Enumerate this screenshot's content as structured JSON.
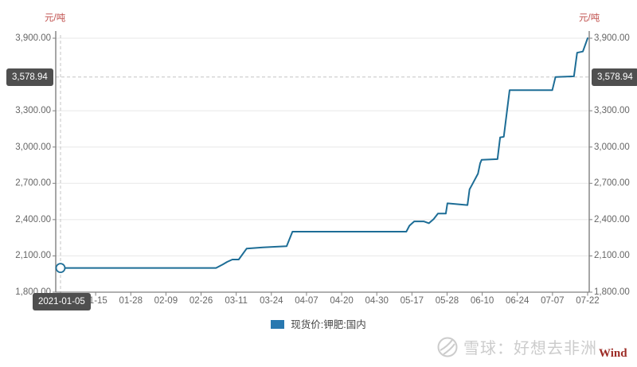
{
  "panel": {
    "y_unit_left": "元/吨",
    "y_unit_right": "元/吨"
  },
  "highlight": {
    "y_label": "3,578.94",
    "x_label": "2021-01-05",
    "y_value": 3578.94
  },
  "legend": {
    "label": "现货价:钾肥:国内",
    "swatch_color": "#2878b0"
  },
  "watermark": {
    "text": "雪球：好想去非洲",
    "wind": "Wind"
  },
  "colors": {
    "line": "#1d6d96",
    "axis": "#808080",
    "grid": "#e7e7e7",
    "dashed": "#c4c4c4",
    "tick_text": "#666666",
    "badge_bg": "#4f4f4f",
    "unit": "#c0504d",
    "wind": "#9c2c26",
    "watermark": "#cccccc"
  },
  "chart_data": {
    "type": "line",
    "title": "",
    "ylabel": "元/吨",
    "ylim": [
      1800,
      3900
    ],
    "grid": "horizontal",
    "legend_position": "bottom",
    "y_ticks": [
      1800,
      2100,
      2400,
      2700,
      3000,
      3300,
      3900
    ],
    "y_tick_labels": [
      "1,800.00",
      "2,100.00",
      "2,400.00",
      "2,700.00",
      "3,000.00",
      "3,300.00",
      "3,900.00"
    ],
    "x_tick_labels": [
      "2021-01-05",
      "01-15",
      "01-28",
      "02-09",
      "02-26",
      "03-11",
      "03-24",
      "04-07",
      "04-20",
      "04-30",
      "05-17",
      "05-28",
      "06-10",
      "06-24",
      "07-07",
      "07-22"
    ],
    "x_range": [
      "2021-01-05",
      "2021-07-22"
    ],
    "reference_line": {
      "value": 3578.94,
      "label": "3,578.94"
    },
    "start_marker": {
      "pos": 0,
      "value": 2000
    },
    "series": [
      {
        "name": "现货价:钾肥:国内",
        "color": "#1d6d96",
        "points": [
          [
            0,
            2000
          ],
          [
            0.295,
            2000
          ],
          [
            0.308,
            2030
          ],
          [
            0.316,
            2050
          ],
          [
            0.326,
            2070
          ],
          [
            0.338,
            2070
          ],
          [
            0.353,
            2160
          ],
          [
            0.384,
            2170
          ],
          [
            0.406,
            2175
          ],
          [
            0.429,
            2180
          ],
          [
            0.44,
            2300
          ],
          [
            0.656,
            2300
          ],
          [
            0.662,
            2350
          ],
          [
            0.671,
            2385
          ],
          [
            0.689,
            2385
          ],
          [
            0.699,
            2370
          ],
          [
            0.708,
            2405
          ],
          [
            0.716,
            2450
          ],
          [
            0.731,
            2450
          ],
          [
            0.734,
            2535
          ],
          [
            0.772,
            2520
          ],
          [
            0.776,
            2650
          ],
          [
            0.781,
            2690
          ],
          [
            0.792,
            2780
          ],
          [
            0.796,
            2865
          ],
          [
            0.799,
            2895
          ],
          [
            0.829,
            2900
          ],
          [
            0.834,
            3080
          ],
          [
            0.841,
            3085
          ],
          [
            0.852,
            3470
          ],
          [
            0.933,
            3470
          ],
          [
            0.939,
            3578.94
          ],
          [
            0.974,
            3585
          ],
          [
            0.98,
            3780
          ],
          [
            0.991,
            3790
          ],
          [
            1,
            3900
          ]
        ]
      }
    ]
  }
}
